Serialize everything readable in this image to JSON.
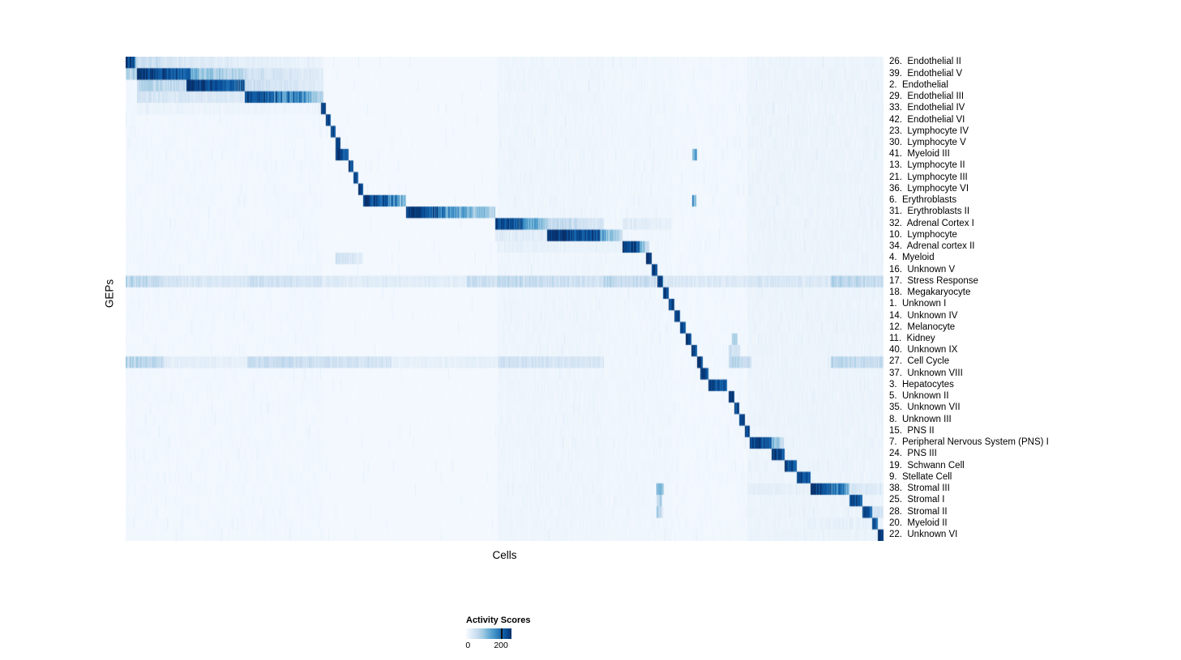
{
  "page": {
    "background": "#ffffff"
  },
  "chart_data": {
    "type": "heatmap",
    "title": "",
    "xlabel": "Cells",
    "ylabel": "GEPs",
    "grid": false,
    "legend": {
      "title": "Activity Scores",
      "ticks": [
        {
          "label": "0",
          "pos": 0.04
        },
        {
          "label": "200",
          "pos": 0.77
        }
      ],
      "tick_mark_pos": 0.77
    },
    "value_range": [
      0,
      200
    ],
    "colormap": {
      "name": "Blues",
      "stops": [
        [
          0.0,
          "#f7fbff"
        ],
        [
          0.125,
          "#deebf7"
        ],
        [
          0.25,
          "#c6dbef"
        ],
        [
          0.375,
          "#9ecae1"
        ],
        [
          0.5,
          "#6baed6"
        ],
        [
          0.625,
          "#4292c6"
        ],
        [
          0.75,
          "#2171b5"
        ],
        [
          0.875,
          "#08519c"
        ],
        [
          1.0,
          "#08306b"
        ]
      ]
    },
    "global_haze": [
      [
        0.0,
        0.26,
        0.02
      ],
      [
        0.26,
        0.49,
        0.012
      ],
      [
        0.49,
        0.63,
        0.035
      ],
      [
        0.63,
        0.72,
        0.028
      ],
      [
        0.72,
        0.82,
        0.02
      ],
      [
        0.82,
        1.0,
        0.045
      ]
    ],
    "rows": [
      {
        "label": "26.  Endothelial II",
        "segments": [
          [
            0,
            0.012,
            1,
            0.8
          ],
          [
            0.012,
            0.09,
            0.25,
            0.12
          ],
          [
            0.09,
            0.26,
            0.12,
            0.06
          ]
        ]
      },
      {
        "label": "39.  Endothelial V",
        "segments": [
          [
            0,
            0.014,
            0.3,
            0.3
          ],
          [
            0.014,
            0.085,
            1,
            0.8
          ],
          [
            0.085,
            0.16,
            0.45,
            0.25
          ],
          [
            0.16,
            0.26,
            0.2,
            0.1
          ]
        ]
      },
      {
        "label": "2.  Endothelial",
        "segments": [
          [
            0.014,
            0.08,
            0.3,
            0.22
          ],
          [
            0.08,
            0.157,
            1,
            0.75
          ],
          [
            0.157,
            0.26,
            0.22,
            0.1
          ]
        ]
      },
      {
        "label": "29.  Endothelial III",
        "segments": [
          [
            0.014,
            0.157,
            0.18,
            0.12
          ],
          [
            0.157,
            0.24,
            0.95,
            0.6
          ],
          [
            0.24,
            0.26,
            0.55,
            0.3
          ]
        ]
      },
      {
        "label": "33.  Endothelial IV",
        "segments": [
          [
            0.014,
            0.257,
            0.06,
            0.04
          ],
          [
            0.257,
            0.2635,
            1,
            0.85
          ]
        ]
      },
      {
        "label": "42.  Endothelial VI",
        "segments": [
          [
            0.2635,
            0.27,
            1,
            0.85
          ]
        ]
      },
      {
        "label": "23.  Lymphocyte IV",
        "segments": [
          [
            0.27,
            0.2765,
            0.95,
            0.85
          ]
        ]
      },
      {
        "label": "30.  Lymphocyte V",
        "segments": [
          [
            0.2765,
            0.283,
            0.95,
            0.85
          ]
        ]
      },
      {
        "label": "41.  Myeloid III",
        "segments": [
          [
            0.276,
            0.294,
            1,
            0.8
          ],
          [
            0.747,
            0.753,
            0.5,
            0.5
          ]
        ]
      },
      {
        "label": "13.  Lymphocyte II",
        "segments": [
          [
            0.294,
            0.3,
            0.95,
            0.85
          ]
        ]
      },
      {
        "label": "21.  Lymphocyte III",
        "segments": [
          [
            0.3,
            0.3065,
            0.95,
            0.85
          ]
        ]
      },
      {
        "label": "36.  Lymphocyte VI",
        "segments": [
          [
            0.3065,
            0.313,
            0.95,
            0.85
          ]
        ]
      },
      {
        "label": "6.  Erythroblasts",
        "segments": [
          [
            0.313,
            0.345,
            1,
            0.8
          ],
          [
            0.345,
            0.369,
            0.7,
            0.45
          ],
          [
            0.747,
            0.752,
            0.55,
            0.55
          ]
        ]
      },
      {
        "label": "31.  Erythroblasts II",
        "segments": [
          [
            0.369,
            0.42,
            1,
            0.7
          ],
          [
            0.42,
            0.487,
            0.65,
            0.3
          ]
        ]
      },
      {
        "label": "32.  Adrenal Cortex I",
        "segments": [
          [
            0.487,
            0.53,
            1,
            0.7
          ],
          [
            0.53,
            0.556,
            0.6,
            0.35
          ],
          [
            0.556,
            0.631,
            0.28,
            0.14
          ],
          [
            0.655,
            0.72,
            0.12,
            0.07
          ]
        ]
      },
      {
        "label": "10.  Lymphocyte",
        "segments": [
          [
            0.487,
            0.556,
            0.12,
            0.1
          ],
          [
            0.556,
            0.625,
            1,
            0.85
          ],
          [
            0.625,
            0.655,
            0.6,
            0.2
          ]
        ]
      },
      {
        "label": "34.  Adrenal cortex II",
        "segments": [
          [
            0.49,
            0.655,
            0.08,
            0.06
          ],
          [
            0.655,
            0.678,
            1,
            0.85
          ],
          [
            0.678,
            0.69,
            0.5,
            0.2
          ]
        ]
      },
      {
        "label": "4.  Myeloid",
        "segments": [
          [
            0.276,
            0.313,
            0.2,
            0.1
          ],
          [
            0.686,
            0.6935,
            1,
            0.9
          ]
        ]
      },
      {
        "label": "16.  Unknown V",
        "segments": [
          [
            0.6935,
            0.701,
            0.95,
            0.88
          ]
        ]
      },
      {
        "label": "17.  Stress Response",
        "segments": [
          [
            0,
            0.05,
            0.3,
            0.2
          ],
          [
            0.05,
            0.16,
            0.16,
            0.13
          ],
          [
            0.16,
            0.26,
            0.2,
            0.16
          ],
          [
            0.26,
            0.45,
            0.12,
            0.1
          ],
          [
            0.45,
            0.49,
            0.22,
            0.18
          ],
          [
            0.49,
            0.63,
            0.26,
            0.18
          ],
          [
            0.63,
            0.7,
            0.28,
            0.2
          ],
          [
            0.701,
            0.7085,
            1,
            0.9
          ],
          [
            0.7085,
            0.82,
            0.16,
            0.12
          ],
          [
            0.82,
            0.93,
            0.16,
            0.13
          ],
          [
            0.93,
            1,
            0.3,
            0.22
          ]
        ]
      },
      {
        "label": "18.  Megakaryocyte",
        "segments": [
          [
            0.7085,
            0.716,
            0.95,
            0.88
          ]
        ]
      },
      {
        "label": "1.  Unknown I",
        "segments": [
          [
            0.716,
            0.7235,
            0.95,
            0.88
          ]
        ]
      },
      {
        "label": "14.  Unknown IV",
        "segments": [
          [
            0.7235,
            0.731,
            0.95,
            0.88
          ]
        ]
      },
      {
        "label": "12.  Melanocyte",
        "segments": [
          [
            0.731,
            0.7385,
            0.95,
            0.88
          ]
        ]
      },
      {
        "label": "11.  Kidney",
        "segments": [
          [
            0.7385,
            0.746,
            0.95,
            0.88
          ],
          [
            0.8,
            0.807,
            0.3,
            0.3
          ]
        ]
      },
      {
        "label": "40.  Unknown IX",
        "segments": [
          [
            0.746,
            0.7535,
            0.95,
            0.88
          ],
          [
            0.795,
            0.81,
            0.2,
            0.15
          ]
        ]
      },
      {
        "label": "27.  Cell Cycle",
        "segments": [
          [
            0,
            0.05,
            0.3,
            0.25
          ],
          [
            0.05,
            0.16,
            0.1,
            0.08
          ],
          [
            0.16,
            0.35,
            0.24,
            0.16
          ],
          [
            0.35,
            0.49,
            0.08,
            0.08
          ],
          [
            0.49,
            0.63,
            0.2,
            0.15
          ],
          [
            0.7535,
            0.761,
            1,
            0.9
          ],
          [
            0.795,
            0.825,
            0.3,
            0.2
          ],
          [
            0.93,
            1,
            0.28,
            0.22
          ]
        ]
      },
      {
        "label": "37.  Unknown VIII",
        "segments": [
          [
            0.758,
            0.768,
            1,
            0.88
          ]
        ]
      },
      {
        "label": "3.  Hepatocytes",
        "segments": [
          [
            0.768,
            0.7935,
            1,
            0.8
          ]
        ]
      },
      {
        "label": "5.  Unknown II",
        "segments": [
          [
            0.7955,
            0.8025,
            0.95,
            0.88
          ]
        ]
      },
      {
        "label": "35.  Unknown VII",
        "segments": [
          [
            0.8025,
            0.8095,
            0.95,
            0.88
          ]
        ]
      },
      {
        "label": "8.  Unknown III",
        "segments": [
          [
            0.8095,
            0.8165,
            0.95,
            0.88
          ]
        ]
      },
      {
        "label": "15.  PNS II",
        "segments": [
          [
            0.8165,
            0.8235,
            0.95,
            0.88
          ]
        ]
      },
      {
        "label": "7.  Peripheral Nervous System (PNS) I",
        "segments": [
          [
            0.8235,
            0.852,
            1,
            0.85
          ],
          [
            0.852,
            0.868,
            0.45,
            0.25
          ]
        ]
      },
      {
        "label": "24.  PNS III",
        "segments": [
          [
            0.852,
            0.8685,
            0.95,
            0.8
          ]
        ]
      },
      {
        "label": "19.  Schwann Cell",
        "segments": [
          [
            0.8685,
            0.885,
            0.95,
            0.82
          ]
        ]
      },
      {
        "label": "9.  Stellate Cell",
        "segments": [
          [
            0.885,
            0.9035,
            0.95,
            0.82
          ]
        ]
      },
      {
        "label": "38.  Stromal III",
        "segments": [
          [
            0.7,
            0.71,
            0.45,
            0.4
          ],
          [
            0.82,
            0.9035,
            0.1,
            0.08
          ],
          [
            0.9035,
            0.95,
            1,
            0.6
          ],
          [
            0.95,
            0.955,
            0.55,
            0.35
          ],
          [
            0.955,
            1,
            0.16,
            0.1
          ]
        ]
      },
      {
        "label": "25.  Stromal I",
        "segments": [
          [
            0.7,
            0.708,
            0.3,
            0.3
          ],
          [
            0.955,
            0.9715,
            0.95,
            0.8
          ]
        ]
      },
      {
        "label": "28.  Stromal II",
        "segments": [
          [
            0.7,
            0.708,
            0.35,
            0.3
          ],
          [
            0.9715,
            0.9845,
            0.95,
            0.8
          ],
          [
            0.9845,
            1,
            0.2,
            0.15
          ]
        ]
      },
      {
        "label": "20.  Myeloid II",
        "segments": [
          [
            0.9,
            0.9845,
            0.08,
            0.08
          ],
          [
            0.9845,
            0.9925,
            0.92,
            0.82
          ]
        ]
      },
      {
        "label": "22.  Unknown VI",
        "segments": [
          [
            0.82,
            0.9925,
            0.06,
            0.06
          ],
          [
            0.9925,
            1,
            1,
            1
          ]
        ]
      }
    ]
  }
}
